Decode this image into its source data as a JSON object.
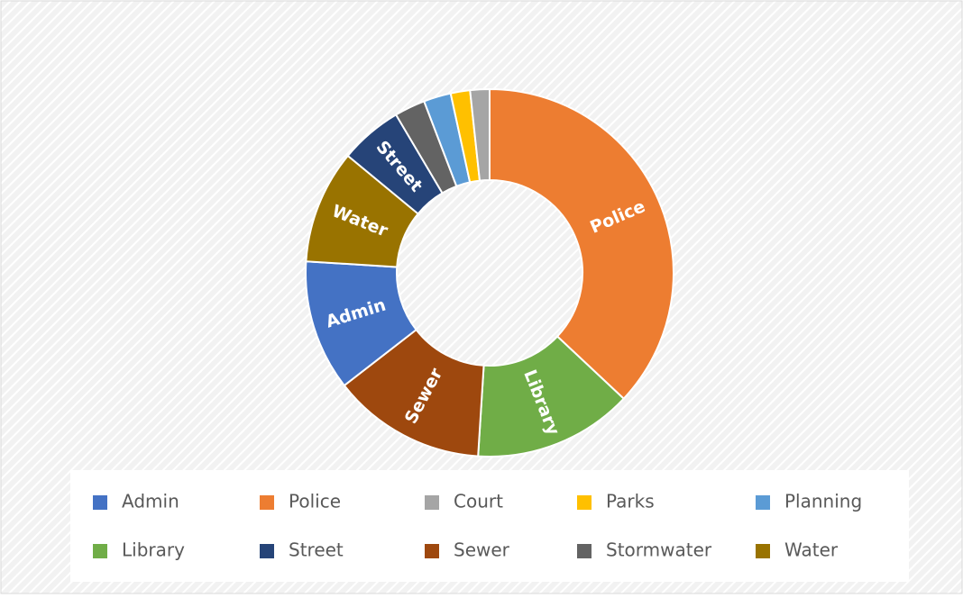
{
  "chart_data": {
    "type": "donut",
    "categories": [
      "Police",
      "Library",
      "Sewer",
      "Admin",
      "Water",
      "Street",
      "Stormwater",
      "Planning",
      "Parks",
      "Court"
    ],
    "values": [
      37,
      14,
      13.5,
      11.5,
      10,
      5.5,
      2.7,
      2.4,
      1.7,
      1.7
    ],
    "colors": [
      "#ED7D31",
      "#70AD47",
      "#9E480E",
      "#4472C4",
      "#997300",
      "#264478",
      "#636363",
      "#5B9BD5",
      "#FFC000",
      "#A5A5A5"
    ],
    "legend": [
      "Admin",
      "Police",
      "Court",
      "Parks",
      "Planning",
      "Library",
      "Street",
      "Sewer",
      "Stormwater",
      "Water"
    ],
    "legend_position": "bottom"
  }
}
